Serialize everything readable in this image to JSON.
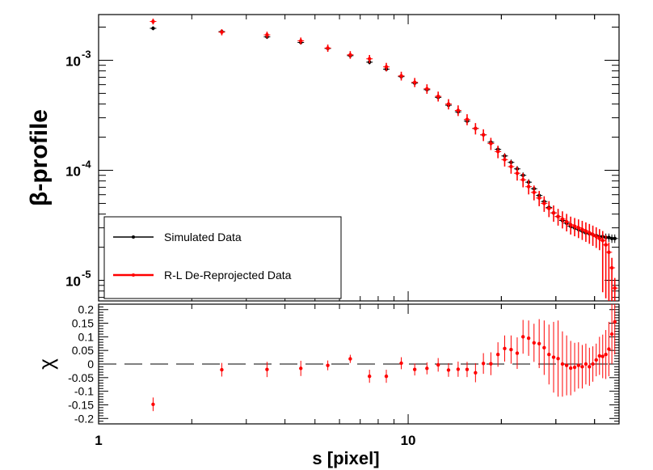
{
  "chart_data": [
    {
      "type": "scatter",
      "panel": "main",
      "ylabel": "β-profile",
      "yscale": "log",
      "xscale": "log",
      "ylim": [
        6.5e-06,
        0.0026
      ],
      "xlim": [
        1,
        48
      ],
      "y_ticks": [
        {
          "value": 0.001,
          "label": "10",
          "exp": "-3"
        },
        {
          "value": 0.0001,
          "label": "10",
          "exp": "-4"
        },
        {
          "value": 1e-05,
          "label": "10",
          "exp": "-5"
        }
      ],
      "legend_placement": "bottom-left",
      "series": [
        {
          "name": "Simulated Data",
          "color": "#000000",
          "x": [
            1.5,
            2.5,
            3.5,
            4.5,
            5.5,
            6.5,
            7.5,
            8.5,
            9.5,
            10.5,
            11.5,
            12.5,
            13.5,
            14.5,
            15.5,
            16.5,
            17.5,
            18.5,
            19.5,
            20.5,
            21.5,
            22.5,
            23.5,
            24.5,
            25.5,
            26.5,
            27.5,
            28.5,
            29.5,
            30.5,
            31.5,
            32.5,
            33.5,
            34.5,
            35.5,
            36.5,
            37.5,
            38.5,
            39.5,
            40.5,
            41.5,
            42.5,
            43.5,
            44.5,
            45.5,
            46.5
          ],
          "y": [
            0.00195,
            0.00182,
            0.00163,
            0.00145,
            0.00128,
            0.0011,
            0.00096,
            0.00083,
            0.00071,
            0.00062,
            0.00054,
            0.00046,
            0.00039,
            0.00034,
            0.00028,
            0.00024,
            0.00021,
            0.00018,
            0.000155,
            0.000135,
            0.000118,
            0.000103,
            9e-05,
            7.8e-05,
            6.8e-05,
            5.9e-05,
            5.2e-05,
            4.6e-05,
            4.1e-05,
            3.8e-05,
            3.5e-05,
            3.3e-05,
            3.1e-05,
            3e-05,
            2.9e-05,
            2.8e-05,
            2.7e-05,
            2.65e-05,
            2.6e-05,
            2.55e-05,
            2.5e-05,
            2.5e-05,
            2.45e-05,
            2.45e-05,
            2.4e-05,
            2.4e-05
          ]
        },
        {
          "name": "R-L De-Reprojected Data",
          "color": "#ff0000",
          "x": [
            1.5,
            2.5,
            3.5,
            4.5,
            5.5,
            6.5,
            7.5,
            8.5,
            9.5,
            10.5,
            11.5,
            12.5,
            13.5,
            14.5,
            15.5,
            16.5,
            17.5,
            18.5,
            19.5,
            20.5,
            21.5,
            22.5,
            23.5,
            24.5,
            25.5,
            26.5,
            27.5,
            28.5,
            29.5,
            30.5,
            31.5,
            32.5,
            33.5,
            34.5,
            35.5,
            36.5,
            37.5,
            38.5,
            39.5,
            40.5,
            41.5,
            42.5,
            43.5,
            44.5,
            45.5,
            46.5
          ],
          "y": [
            0.00225,
            0.0018,
            0.0017,
            0.0015,
            0.00129,
            0.00112,
            0.00103,
            0.00087,
            0.00072,
            0.00063,
            0.00055,
            0.00047,
            0.0004,
            0.00035,
            0.00029,
            0.00024,
            0.00021,
            0.000175,
            0.000148,
            0.000125,
            0.000108,
            9.4e-05,
            8.2e-05,
            7.1e-05,
            6.3e-05,
            5.6e-05,
            5e-05,
            4.5e-05,
            4.1e-05,
            3.8e-05,
            3.6e-05,
            3.4e-05,
            3.2e-05,
            3.1e-05,
            3e-05,
            2.9e-05,
            2.8e-05,
            2.7e-05,
            2.6e-05,
            2.5e-05,
            2.4e-05,
            2.3e-05,
            2.1e-05,
            1.8e-05,
            1.3e-05,
            8.5e-06
          ]
        }
      ]
    },
    {
      "type": "scatter",
      "panel": "residual",
      "xlabel": "s [pixel]",
      "ylabel": "χ",
      "xscale": "log",
      "xlim": [
        1,
        48
      ],
      "ylim": [
        -0.22,
        0.22
      ],
      "x_ticks": [
        {
          "value": 1,
          "label": "1"
        },
        {
          "value": 10,
          "label": "10"
        }
      ],
      "y_ticks": [
        {
          "value": 0.2,
          "label": "0.2"
        },
        {
          "value": 0.15,
          "label": "0.15"
        },
        {
          "value": 0.1,
          "label": "0.1"
        },
        {
          "value": 0.05,
          "label": "0.05"
        },
        {
          "value": 0,
          "label": "0"
        },
        {
          "value": -0.05,
          "label": "-0.05"
        },
        {
          "value": -0.1,
          "label": "-0.1"
        },
        {
          "value": -0.15,
          "label": "-0.15"
        },
        {
          "value": -0.2,
          "label": "-0.2"
        }
      ],
      "reference_line": 0,
      "series": [
        {
          "color": "#ff0000",
          "x": [
            1.5,
            2.5,
            3.5,
            4.5,
            5.5,
            6.5,
            7.5,
            8.5,
            9.5,
            10.5,
            11.5,
            12.5,
            13.5,
            14.5,
            15.5,
            16.5,
            17.5,
            18.5,
            19.5,
            20.5,
            21.5,
            22.5,
            23.5,
            24.5,
            25.5,
            26.5,
            27.5,
            28.5,
            29.5,
            30.5,
            31.5,
            32.5,
            33.5,
            34.5,
            35.5,
            36.5,
            37.5,
            38.5,
            39.5,
            40.5,
            41.5,
            42.5,
            43.5,
            44.5,
            45.5,
            46.5
          ],
          "y": [
            -0.148,
            -0.021,
            -0.02,
            -0.016,
            -0.005,
            0.019,
            -0.045,
            -0.045,
            0.003,
            -0.02,
            -0.016,
            -0.003,
            -0.022,
            -0.019,
            -0.02,
            -0.032,
            0.002,
            0.001,
            0.035,
            0.057,
            0.053,
            0.04,
            0.1,
            0.095,
            0.078,
            0.075,
            0.06,
            0.035,
            0.025,
            0.02,
            0.0,
            -0.005,
            -0.015,
            -0.012,
            -0.005,
            -0.01,
            0.0,
            -0.01,
            0.0,
            0.015,
            0.03,
            0.028,
            0.035,
            0.055,
            0.11,
            0.155
          ],
          "err": [
            0.025,
            0.025,
            0.028,
            0.028,
            0.018,
            0.015,
            0.024,
            0.024,
            0.022,
            0.022,
            0.022,
            0.025,
            0.025,
            0.028,
            0.028,
            0.035,
            0.038,
            0.042,
            0.045,
            0.048,
            0.052,
            0.058,
            0.062,
            0.065,
            0.07,
            0.09,
            0.1,
            0.11,
            0.13,
            0.14,
            0.12,
            0.11,
            0.1,
            0.09,
            0.085,
            0.08,
            0.075,
            0.07,
            0.065,
            0.06,
            0.07,
            0.08,
            0.09,
            0.1,
            0.11,
            0.12
          ]
        }
      ]
    }
  ]
}
